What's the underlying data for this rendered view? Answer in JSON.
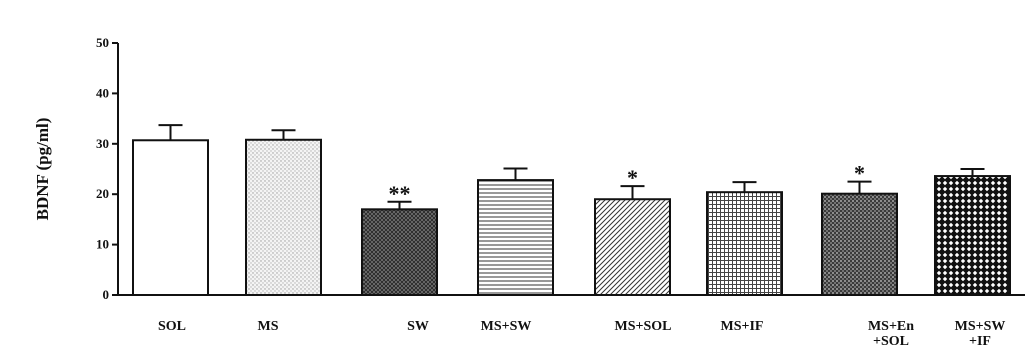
{
  "chart_data": {
    "type": "bar",
    "ylabel": "BDNF (pg/ml)",
    "xlabel": "",
    "ylim": [
      0,
      50
    ],
    "yticks": [
      0,
      10,
      20,
      30,
      40,
      50
    ],
    "grid": false,
    "legend": "none",
    "categories": [
      {
        "lines": [
          "SOL"
        ]
      },
      {
        "lines": [
          "MS"
        ]
      },
      {
        "lines": [
          "SW"
        ]
      },
      {
        "lines": [
          "MS+SW"
        ]
      },
      {
        "lines": [
          "MS+SOL"
        ]
      },
      {
        "lines": [
          "MS+IF"
        ]
      },
      {
        "lines": [
          "MS+En",
          "+SOL"
        ]
      },
      {
        "lines": [
          "MS+SW",
          "+IF"
        ]
      }
    ],
    "values": [
      30.7,
      30.8,
      17.0,
      22.8,
      19.0,
      20.4,
      20.1,
      23.6
    ],
    "errors": [
      3.0,
      1.9,
      1.5,
      2.3,
      2.6,
      2.0,
      2.4,
      1.4
    ],
    "significance": [
      "",
      "",
      "**",
      "",
      "*",
      "",
      "*",
      ""
    ],
    "patterns": [
      "white",
      "fine-dots",
      "dark-crosshatch",
      "horizontal-lines",
      "diagonal-lines",
      "grid",
      "dark-dots",
      "black-diamond"
    ]
  }
}
